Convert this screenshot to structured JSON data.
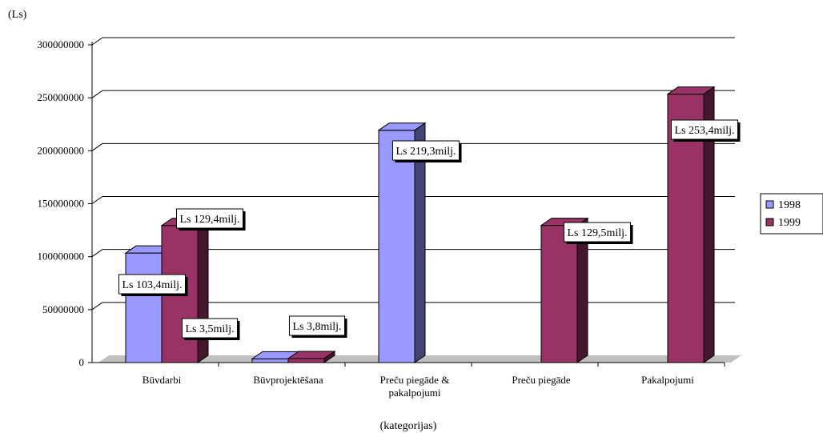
{
  "chart_data": {
    "type": "bar",
    "ylabel": "(Ls)",
    "xlabel": "(kategorijas)",
    "ylim": [
      0,
      300000000
    ],
    "yticks": [
      "0",
      "50000000",
      "100000000",
      "150000000",
      "200000000",
      "250000000",
      "300000000"
    ],
    "yticks_values": [
      0,
      50000000,
      100000000,
      150000000,
      200000000,
      250000000,
      300000000
    ],
    "grid": true,
    "legend_position": "right",
    "categories": [
      [
        "Būvdarbi"
      ],
      [
        "Būvprojektēšana"
      ],
      [
        "Preču piegāde &",
        "pakalpojumi"
      ],
      [
        "Preču piegāde"
      ],
      [
        "Pakalpojumi"
      ]
    ],
    "series": [
      {
        "name": "1998",
        "color": "#9999ff",
        "values": [
          103400000,
          3500000,
          219300000,
          null,
          null
        ],
        "labels": [
          "Ls 103,4milj.",
          "Ls 3,5milj.",
          "Ls 219,3milj.",
          null,
          null
        ]
      },
      {
        "name": "1999",
        "color": "#993366",
        "values": [
          129400000,
          3800000,
          null,
          129500000,
          253400000
        ],
        "labels": [
          "Ls 129,4milj.",
          "Ls 3,8milj.",
          null,
          "Ls 129,5milj.",
          "Ls 253,4milj."
        ]
      }
    ]
  }
}
